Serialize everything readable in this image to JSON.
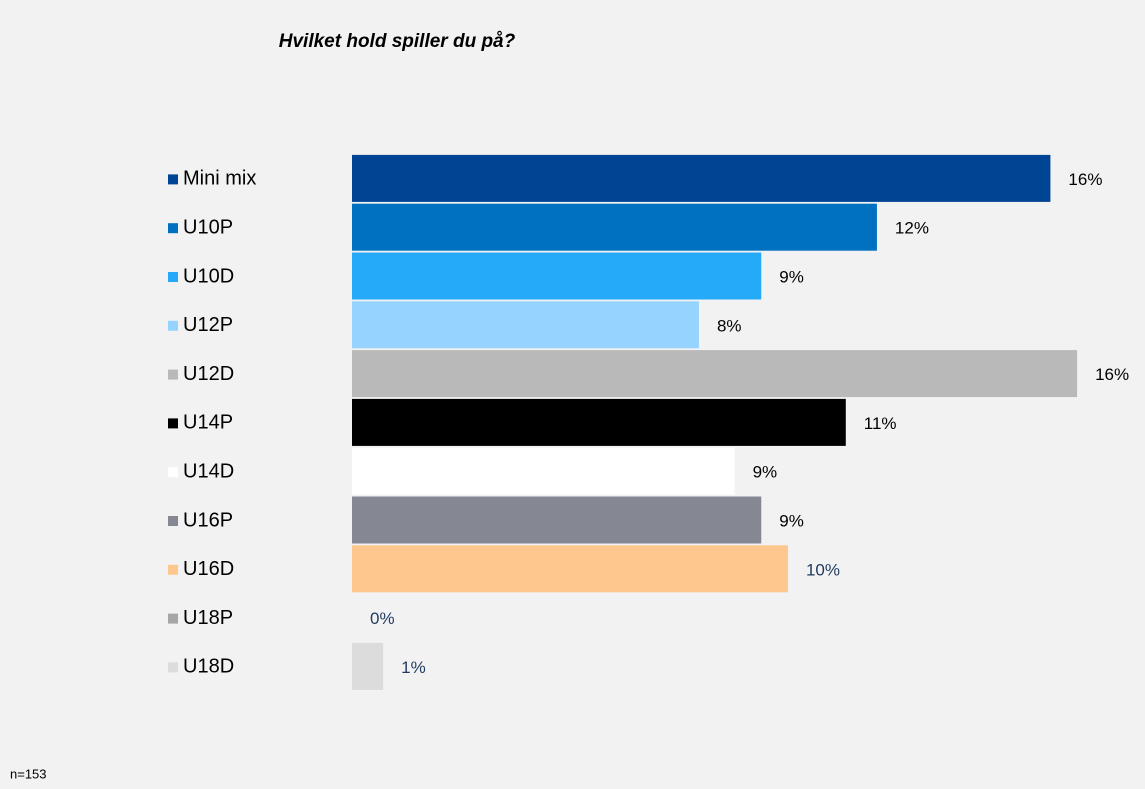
{
  "chart_data": {
    "type": "hbar",
    "title": "Hvilket hold spiller du på?",
    "note": "n=153",
    "categories": [
      "Mini mix",
      "U10P",
      "U10D",
      "U12P",
      "U12D",
      "U14P",
      "U14D",
      "U16P",
      "U16D",
      "U18P",
      "U18D"
    ],
    "values": [
      15.7,
      11.8,
      9.2,
      7.8,
      16.3,
      11.1,
      8.6,
      9.2,
      9.8,
      0,
      0.7
    ],
    "value_labels": [
      "16%",
      "12%",
      "9%",
      "8%",
      "16%",
      "11%",
      "9%",
      "9%",
      "10%",
      "0%",
      "1%"
    ],
    "colors": [
      "#004494",
      "#0070c0",
      "#25a9f9",
      "#96d4ff",
      "#b9b9b9",
      "#000000",
      "#ffffff",
      "#858892",
      "#fdc78e",
      "#a6a6a6",
      "#dcdcdc"
    ],
    "value_label_colors": [
      "#000000",
      "#000000",
      "#000000",
      "#000000",
      "#000000",
      "#000000",
      "#000000",
      "#000000",
      "#1f3a5f",
      "#1f3a5f",
      "#1f3a5f"
    ],
    "xlim": [
      0,
      16.5
    ]
  }
}
